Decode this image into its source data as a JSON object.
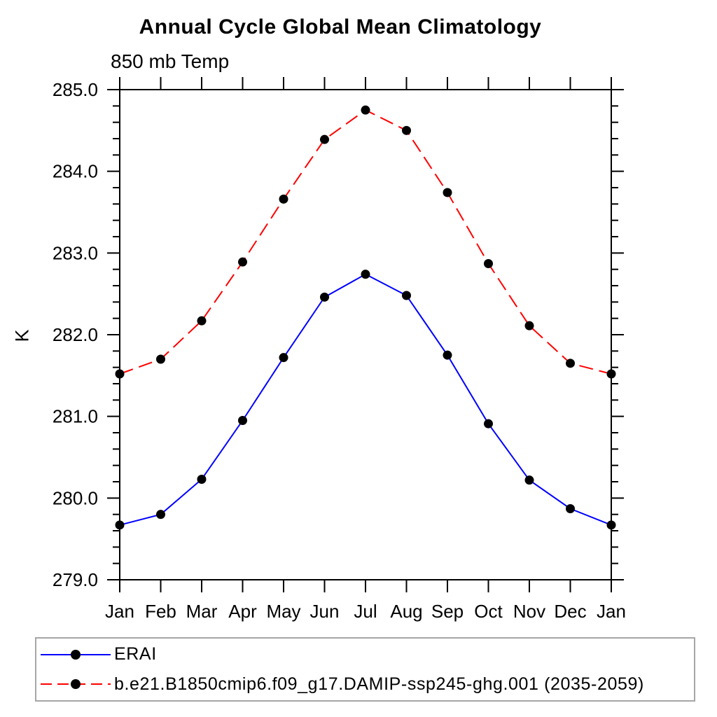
{
  "title": "Annual Cycle Global Mean Climatology",
  "subtitle": "850 mb Temp",
  "ylabel": "K",
  "chart_data": {
    "type": "line",
    "categories": [
      "Jan",
      "Feb",
      "Mar",
      "Apr",
      "May",
      "Jun",
      "Jul",
      "Aug",
      "Sep",
      "Oct",
      "Nov",
      "Dec",
      "Jan"
    ],
    "series": [
      {
        "name": "ERAI",
        "color": "#0000ff",
        "line_style": "solid",
        "marker": "filled-circle",
        "marker_color": "#000000",
        "values": [
          279.67,
          279.8,
          280.23,
          280.95,
          281.72,
          282.46,
          282.74,
          282.48,
          281.75,
          280.91,
          280.22,
          279.87,
          279.67
        ]
      },
      {
        "name": "b.e21.B1850cmip6.f09_g17.DAMIP-ssp245-ghg.001 (2035-2059)",
        "color": "#ff0000",
        "line_style": "dashed",
        "marker": "filled-circle",
        "marker_color": "#000000",
        "values": [
          281.52,
          281.7,
          282.17,
          282.89,
          283.66,
          284.39,
          284.75,
          284.5,
          283.74,
          282.87,
          282.11,
          281.65,
          281.52
        ]
      }
    ],
    "ylim": [
      279.0,
      285.0
    ],
    "ytick_step": 1.0,
    "ytick_minor_step": 0.2,
    "ytick_labels": [
      "279.0",
      "280.0",
      "281.0",
      "282.0",
      "283.0",
      "284.0",
      "285.0"
    ],
    "grid": "off",
    "legend_position": "bottom-left",
    "axis_color": "#000000"
  }
}
